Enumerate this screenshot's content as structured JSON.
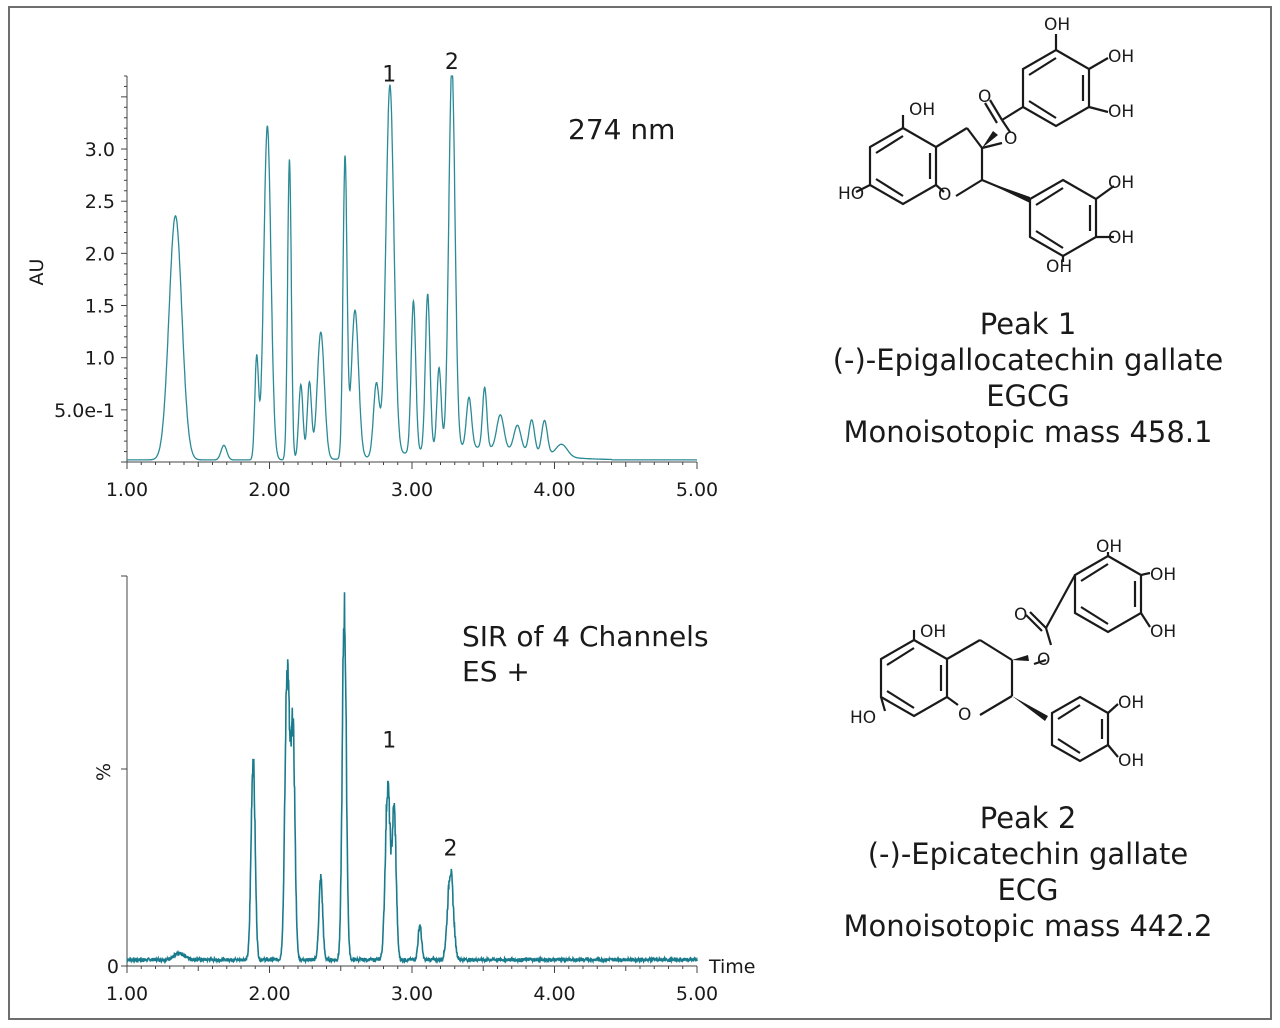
{
  "chart_data": [
    {
      "type": "line",
      "title": "274 nm",
      "xlabel": "",
      "ylabel": "AU",
      "xlim": [
        1.0,
        5.0
      ],
      "ylim": [
        0,
        3.7
      ],
      "x_ticks": [
        "1.00",
        "2.00",
        "3.00",
        "4.00",
        "5.00"
      ],
      "y_ticks": [
        "5.0e-1",
        "1.0",
        "1.5",
        "2.0",
        "2.5",
        "3.0"
      ],
      "line_color": "#2a8a96",
      "peak_labels": [
        {
          "label": "1",
          "x": 2.84,
          "y": 3.55
        },
        {
          "label": "2",
          "x": 3.28,
          "y": 3.67
        }
      ],
      "baseline": 0.02,
      "peaks": [
        {
          "x": 1.34,
          "y": 2.34,
          "w": 0.045
        },
        {
          "x": 1.68,
          "y": 0.14,
          "w": 0.02
        },
        {
          "x": 1.91,
          "y": 0.97,
          "w": 0.013
        },
        {
          "x": 1.985,
          "y": 3.2,
          "w": 0.025
        },
        {
          "x": 2.14,
          "y": 2.88,
          "w": 0.013
        },
        {
          "x": 2.22,
          "y": 0.72,
          "w": 0.015
        },
        {
          "x": 2.28,
          "y": 0.74,
          "w": 0.015
        },
        {
          "x": 2.36,
          "y": 1.22,
          "w": 0.025
        },
        {
          "x": 2.53,
          "y": 2.88,
          "w": 0.014
        },
        {
          "x": 2.6,
          "y": 1.42,
          "w": 0.025
        },
        {
          "x": 2.75,
          "y": 0.7,
          "w": 0.02
        },
        {
          "x": 2.845,
          "y": 3.55,
          "w": 0.028
        },
        {
          "x": 3.01,
          "y": 1.45,
          "w": 0.016
        },
        {
          "x": 3.11,
          "y": 1.5,
          "w": 0.016
        },
        {
          "x": 3.19,
          "y": 0.78,
          "w": 0.015
        },
        {
          "x": 3.28,
          "y": 3.67,
          "w": 0.022
        },
        {
          "x": 3.4,
          "y": 0.48,
          "w": 0.018
        },
        {
          "x": 3.51,
          "y": 0.58,
          "w": 0.015
        },
        {
          "x": 3.62,
          "y": 0.33,
          "w": 0.025
        },
        {
          "x": 3.74,
          "y": 0.25,
          "w": 0.025
        },
        {
          "x": 3.84,
          "y": 0.32,
          "w": 0.02
        },
        {
          "x": 3.93,
          "y": 0.33,
          "w": 0.02
        },
        {
          "x": 4.05,
          "y": 0.12,
          "w": 0.04
        }
      ]
    },
    {
      "type": "line",
      "title": "SIR of 4 Channels",
      "subtitle": "ES +",
      "xlabel": "Time",
      "ylabel": "%",
      "xlim": [
        1.0,
        5.0
      ],
      "ylim": [
        0,
        100
      ],
      "x_ticks": [
        "1.00",
        "2.00",
        "3.00",
        "4.00",
        "5.00"
      ],
      "y_ticks": [
        "0"
      ],
      "line_color": "#1a7b8c",
      "peak_labels": [
        {
          "label": "1",
          "x": 2.84,
          "y": 53
        },
        {
          "label": "2",
          "x": 3.27,
          "y": 25
        }
      ],
      "baseline": 0.6,
      "peaks": [
        {
          "x": 1.37,
          "y": 1.5,
          "w": 0.04
        },
        {
          "x": 1.885,
          "y": 52,
          "w": 0.014
        },
        {
          "x": 2.125,
          "y": 76,
          "w": 0.016
        },
        {
          "x": 2.165,
          "y": 58,
          "w": 0.014
        },
        {
          "x": 2.36,
          "y": 21,
          "w": 0.013
        },
        {
          "x": 2.525,
          "y": 91,
          "w": 0.014
        },
        {
          "x": 2.83,
          "y": 45,
          "w": 0.017
        },
        {
          "x": 2.875,
          "y": 38,
          "w": 0.014
        },
        {
          "x": 3.055,
          "y": 9,
          "w": 0.012
        },
        {
          "x": 3.27,
          "y": 23,
          "w": 0.02
        }
      ]
    }
  ],
  "compounds": [
    {
      "peak": "Peak 1",
      "name": "(-)-Epigallocatechin gallate",
      "abbr": "EGCG",
      "mass": "Monoisotopic mass 458.1",
      "labels": {
        "oh1": "OH",
        "oh2": "OH",
        "oh3": "OH",
        "oh4": "OH",
        "oh5": "OH",
        "ho": "HO",
        "oh6": "OH",
        "oh7": "OH",
        "oh8": "OH",
        "ring_o": "O",
        "ester_o": "O",
        "carbonyl_o": "O"
      }
    },
    {
      "peak": "Peak 2",
      "name": "(-)-Epicatechin gallate",
      "abbr": "ECG",
      "mass": "Monoisotopic mass 442.2",
      "labels": {
        "oh1": "OH",
        "oh2": "OH",
        "oh3": "OH",
        "oh4": "OH",
        "ho": "HO",
        "oh6": "OH",
        "oh7": "OH",
        "ring_o": "O",
        "ester_o": "O",
        "carbonyl_o": "O"
      }
    }
  ]
}
